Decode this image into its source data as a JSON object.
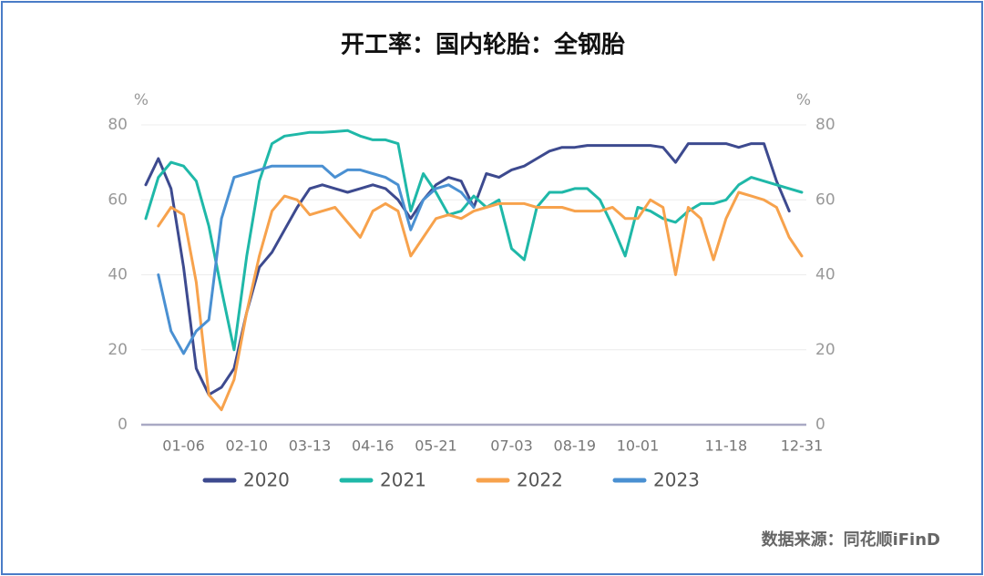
{
  "chart_data": {
    "type": "line",
    "title": "开工率：国内轮胎：全钢胎",
    "y_unit": "%",
    "y2_unit": "%",
    "source": "数据来源：同花顺iFinD",
    "categories": [
      null,
      null,
      null,
      "01-06",
      null,
      null,
      null,
      null,
      "02-10",
      null,
      null,
      null,
      null,
      "03-13",
      null,
      null,
      null,
      null,
      "04-16",
      null,
      null,
      null,
      null,
      "05-21",
      null,
      null,
      null,
      null,
      null,
      "07-03",
      null,
      null,
      null,
      null,
      "08-19",
      null,
      null,
      null,
      null,
      "10-01",
      null,
      null,
      null,
      null,
      null,
      null,
      "11-18",
      null,
      null,
      null,
      null,
      null,
      "12-31"
    ],
    "series": [
      {
        "name": "2020",
        "color": "#3d4a8f",
        "values": [
          64,
          71,
          63,
          42,
          15,
          8,
          10,
          15,
          30,
          42,
          46,
          52,
          58,
          63,
          64,
          63,
          62,
          63,
          64,
          63,
          60,
          55,
          60,
          64,
          66,
          65,
          58,
          67,
          66,
          68,
          69,
          71,
          73,
          74,
          74,
          74.5,
          74.5,
          74.5,
          74.5,
          74.5,
          74.5,
          74,
          70,
          75,
          75,
          75,
          75,
          74,
          75,
          75,
          65,
          57,
          null
        ]
      },
      {
        "name": "2021",
        "color": "#1fb8a8",
        "values": [
          55,
          66,
          70,
          69,
          65,
          53,
          36,
          20,
          45,
          65,
          75,
          77,
          77.5,
          78,
          78,
          78.2,
          78.5,
          77,
          76,
          76,
          75,
          57,
          67,
          62,
          56,
          57,
          61,
          58,
          60,
          47,
          44,
          58,
          62,
          62,
          63,
          63,
          60,
          53,
          45,
          58,
          57,
          55,
          54,
          57,
          59,
          59,
          60,
          64,
          66,
          65,
          64,
          63,
          62
        ]
      },
      {
        "name": "2022",
        "color": "#f7a24c",
        "values": [
          null,
          53,
          58,
          56,
          38,
          8,
          4,
          12,
          30,
          45,
          57,
          61,
          60,
          56,
          57,
          58,
          54,
          50,
          57,
          59,
          57,
          45,
          50,
          55,
          56,
          55,
          57,
          58,
          59,
          59,
          59,
          58,
          58,
          58,
          57,
          57,
          57,
          58,
          55,
          55,
          60,
          58,
          40,
          58,
          55,
          44,
          55,
          62,
          61,
          60,
          58,
          50,
          45
        ]
      },
      {
        "name": "2023",
        "color": "#4a90d2",
        "values": [
          null,
          40,
          25,
          19,
          25,
          28,
          55,
          66,
          67,
          68,
          69,
          69,
          69,
          69,
          69,
          66,
          68,
          68,
          67,
          66,
          64,
          52,
          60,
          63,
          64,
          62,
          58,
          null,
          null,
          null,
          null,
          null,
          null,
          null,
          null,
          null,
          null,
          null,
          null,
          null,
          null,
          null,
          null,
          null,
          null,
          null,
          null,
          null,
          null,
          null,
          null,
          null,
          null
        ]
      }
    ],
    "ylim": [
      0,
      80
    ],
    "yticks": [
      0,
      20,
      40,
      60,
      80
    ],
    "y2lim": [
      0,
      80
    ],
    "y2ticks": [
      0,
      20,
      40,
      60,
      80
    ],
    "grid": true
  }
}
